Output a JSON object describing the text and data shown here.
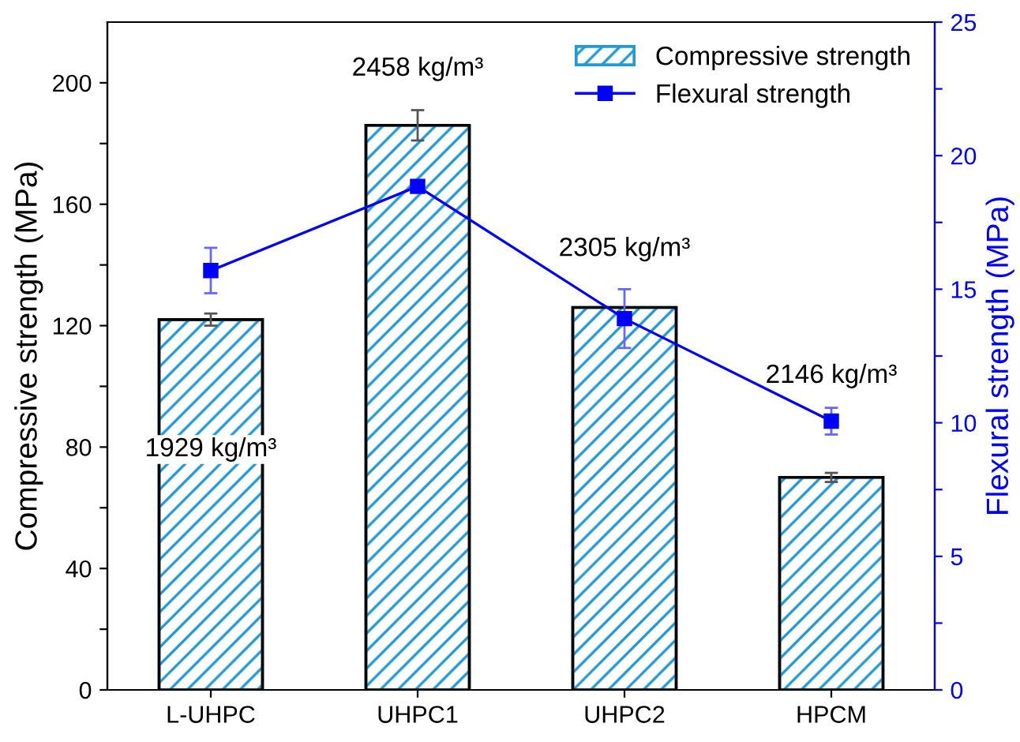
{
  "chart_data": {
    "type": "bar",
    "ylabel": "Compressive strength (MPa)",
    "y2label": "Flexural strength (MPa)",
    "categories": [
      "L-UHPC",
      "UHPC1",
      "UHPC2",
      "HPCM"
    ],
    "series": [
      {
        "name": "Compressive strength",
        "color": "#1e9ad6",
        "values": [
          122,
          186,
          126,
          70
        ],
        "errors": [
          2,
          5,
          null,
          1.5
        ]
      },
      {
        "name": "Flexural strength",
        "type": "line",
        "axis": "y2",
        "color": "#0000ff",
        "marker": "square",
        "values": [
          15.7,
          18.85,
          13.9,
          10.06
        ],
        "errors": [
          0.85,
          null,
          1.1,
          0.5
        ]
      }
    ],
    "ylim": [
      0,
      220
    ],
    "yticks": [
      0,
      {
        "value": 20,
        "label": null
      },
      40,
      {
        "value": 60,
        "label": null
      },
      80,
      {
        "value": 100,
        "label": null
      },
      120,
      {
        "value": 140,
        "label": null
      },
      160,
      {
        "value": 180,
        "label": null
      },
      200
    ],
    "y2lim": [
      0,
      25
    ],
    "y2ticks": [
      0,
      {
        "value": 2.5,
        "label": null
      },
      5,
      {
        "value": 7.5,
        "label": null
      },
      10,
      {
        "value": 12.5,
        "label": null
      },
      15,
      {
        "value": 17.5,
        "label": null
      },
      20,
      {
        "value": 22.5,
        "label": null
      },
      25
    ],
    "annotations": [
      "1929 kg/m³",
      "2458 kg/m³",
      "2305 kg/m³",
      "2146 kg/m³"
    ],
    "legend": "top right",
    "grid": false
  }
}
